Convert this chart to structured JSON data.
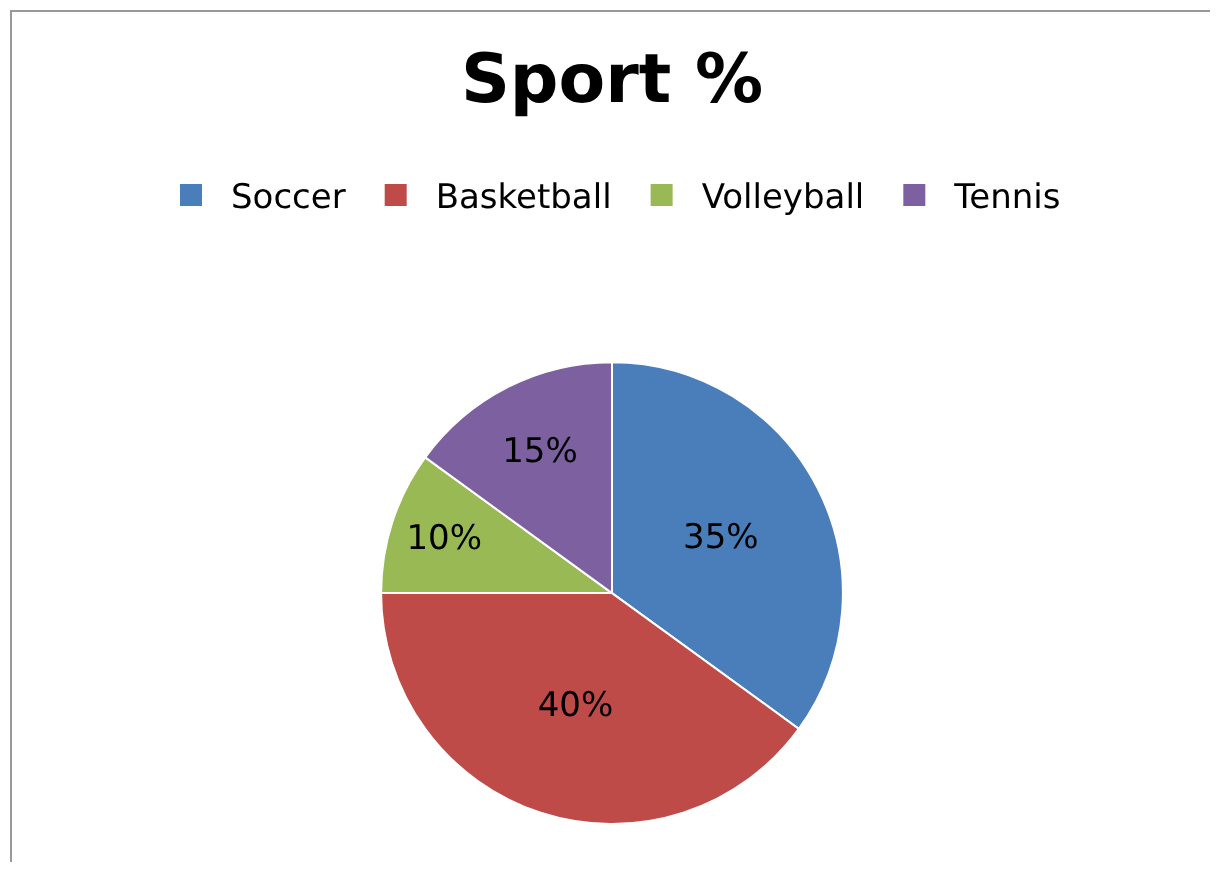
{
  "chart_data": {
    "type": "pie",
    "title": "Sport %",
    "categories": [
      "Soccer",
      "Basketball",
      "Volleyball",
      "Tennis"
    ],
    "values": [
      35,
      40,
      10,
      15
    ],
    "colors": [
      "#4a7ebb",
      "#be4b48",
      "#98b954",
      "#7d60a0"
    ],
    "value_labels": [
      "35%",
      "40%",
      "10%",
      "15%"
    ],
    "legend": "top"
  }
}
